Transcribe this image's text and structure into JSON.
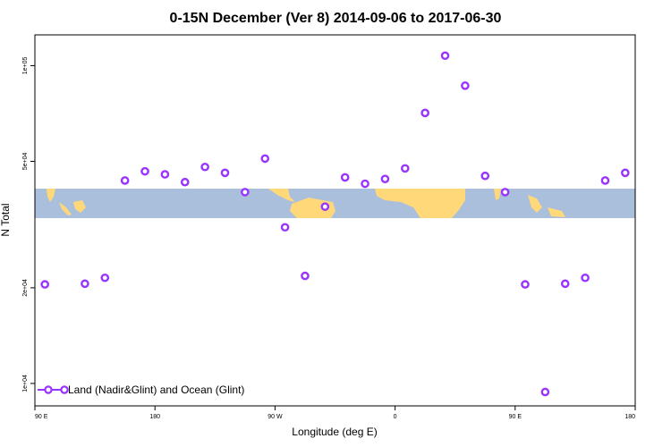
{
  "chart_data": {
    "type": "scatter",
    "title": "0-15N December (Ver 8)   2014-09-06 to 2017-06-30",
    "xlabel": "Longitude (deg E)",
    "ylabel": "N Total",
    "y_scale": "log",
    "ylim": [
      8500,
      125000
    ],
    "xlim": [
      0,
      360
    ],
    "x_ticks": [
      {
        "value": 0,
        "label": "90 E"
      },
      {
        "value": 72,
        "label": "180"
      },
      {
        "value": 144,
        "label": "90 W"
      },
      {
        "value": 216,
        "label": "0"
      },
      {
        "value": 288,
        "label": "90 E"
      },
      {
        "value": 360,
        "label": "180"
      }
    ],
    "y_ticks": [
      {
        "value": 10000,
        "label": "1e+04"
      },
      {
        "value": 20000,
        "label": "2e+04"
      },
      {
        "value": 50000,
        "label": "5e+04"
      },
      {
        "value": 100000,
        "label": "1e+05"
      }
    ],
    "series": [
      {
        "name": "Land (Nadir&Glint) and Ocean (Glint)",
        "color": "#9933ff",
        "x": [
          6,
          30,
          42,
          54,
          66,
          78,
          90,
          102,
          114,
          126,
          138,
          150,
          162,
          174,
          186,
          198,
          210,
          222,
          234,
          246,
          258,
          270,
          282,
          294,
          306,
          318,
          330,
          342,
          354
        ],
        "y": [
          20500,
          20600,
          21500,
          43500,
          46500,
          45500,
          43000,
          48000,
          46000,
          40000,
          51000,
          31000,
          21800,
          36000,
          44500,
          42500,
          44000,
          47500,
          71000,
          107500,
          86500,
          45000,
          40000,
          20500,
          9400,
          20600,
          21500,
          43500,
          46000
        ]
      }
    ],
    "legend": {
      "position": "bottom-left",
      "label": "Land (Nadir&Glint) and Ocean (Glint)"
    },
    "background_map": {
      "description": "world map strip 0-15N",
      "ocean_color": "#a9bfdc",
      "land_color": "#ffd87a"
    }
  }
}
